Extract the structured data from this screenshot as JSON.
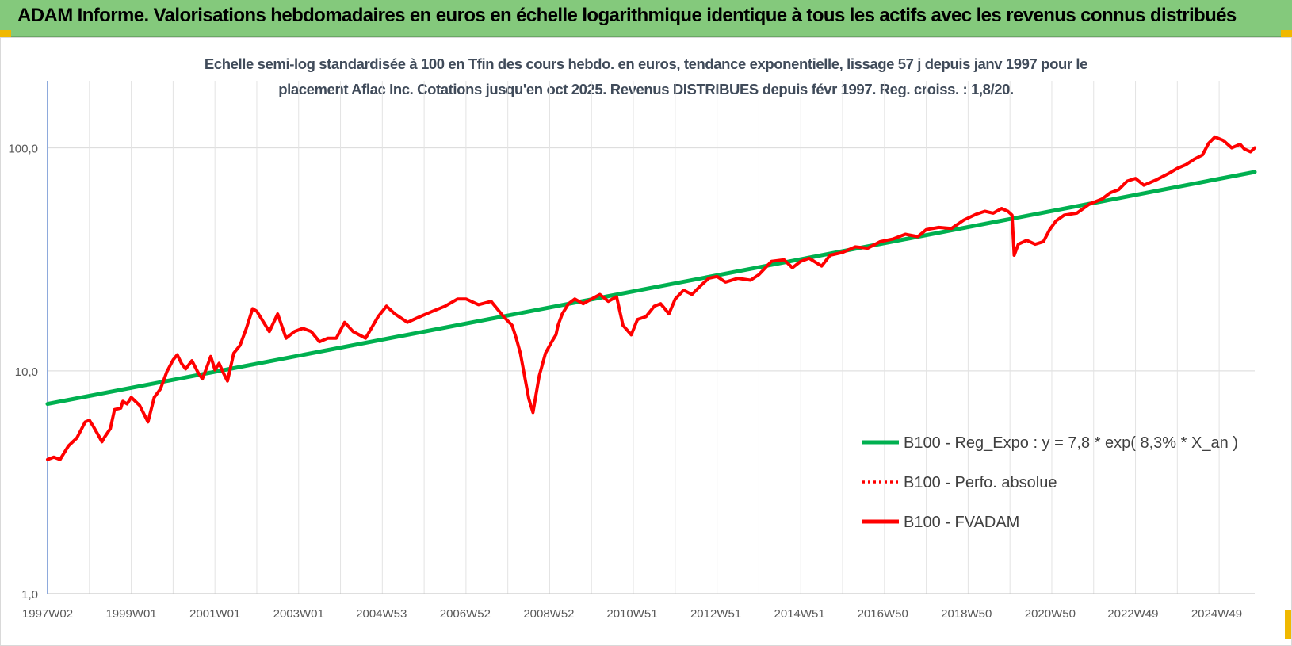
{
  "header": {
    "title": "ADAM Informe. Valorisations hebdomadaires en euros en échelle logarithmique identique à tous les actifs avec les revenus connus distribués"
  },
  "chart_data": {
    "type": "line",
    "title": "Echelle semi-log standardisée à 100 en Tfin des cours hebdo. en euros, tendance exponentielle, lissage 57 j depuis janv 1997 pour le",
    "subtitle": "placement Aflac Inc. Cotations jusqu'en oct 2025.  Revenus DISTRIBUES depuis févr 1997. Reg. croiss. : 1,8/20.",
    "y_scale": "log",
    "ylim": [
      1,
      200
    ],
    "y_ticks": [
      {
        "value": 1,
        "label": "1,0"
      },
      {
        "value": 10,
        "label": "10,0"
      },
      {
        "value": 100,
        "label": "100,0"
      }
    ],
    "xlim": [
      1997.0,
      2025.85
    ],
    "x_ticks": [
      {
        "year": 1997.0,
        "label": "1997W02"
      },
      {
        "year": 1999.0,
        "label": "1999W01"
      },
      {
        "year": 2001.0,
        "label": "2001W01"
      },
      {
        "year": 2003.0,
        "label": "2003W01"
      },
      {
        "year": 2004.98,
        "label": "2004W53"
      },
      {
        "year": 2006.98,
        "label": "2006W52"
      },
      {
        "year": 2008.98,
        "label": "2008W52"
      },
      {
        "year": 2010.97,
        "label": "2010W51"
      },
      {
        "year": 2012.97,
        "label": "2012W51"
      },
      {
        "year": 2014.97,
        "label": "2014W51"
      },
      {
        "year": 2016.96,
        "label": "2016W50"
      },
      {
        "year": 2018.96,
        "label": "2018W50"
      },
      {
        "year": 2020.96,
        "label": "2020W50"
      },
      {
        "year": 2022.94,
        "label": "2022W49"
      },
      {
        "year": 2024.94,
        "label": "2024W49"
      }
    ],
    "grid": true,
    "legend_position": "bottom-right",
    "series": [
      {
        "name": "B100 - Reg_Expo : y = 7,8 * exp( 8,3% *  X_an )",
        "color": "#00b050",
        "style": "solid",
        "x": [
          1997.0,
          2025.85
        ],
        "y": [
          7.1,
          78
        ]
      },
      {
        "name": "B100 - Perfo. absolue",
        "color": "#ff0000",
        "style": "dotted",
        "x": [],
        "y": []
      },
      {
        "name": "B100 - FVADAM",
        "color": "#ff0000",
        "style": "solid",
        "x": [
          1997.0,
          1997.15,
          1997.3,
          1997.5,
          1997.7,
          1997.9,
          1998.0,
          1998.1,
          1998.2,
          1998.3,
          1998.35,
          1998.5,
          1998.6,
          1998.75,
          1998.8,
          1998.9,
          1999.0,
          1999.2,
          1999.4,
          1999.55,
          1999.7,
          1999.85,
          2000.0,
          2000.1,
          2000.2,
          2000.3,
          2000.45,
          2000.6,
          2000.7,
          2000.8,
          2000.9,
          2001.0,
          2001.1,
          2001.2,
          2001.3,
          2001.45,
          2001.6,
          2001.75,
          2001.9,
          2002.0,
          2002.3,
          2002.5,
          2002.7,
          2002.9,
          2003.1,
          2003.3,
          2003.5,
          2003.7,
          2003.9,
          2004.1,
          2004.3,
          2004.6,
          2004.9,
          2005.1,
          2005.3,
          2005.6,
          2005.9,
          2006.2,
          2006.5,
          2006.8,
          2007.0,
          2007.3,
          2007.6,
          2007.9,
          2008.1,
          2008.2,
          2008.3,
          2008.5,
          2008.6,
          2008.75,
          2008.9,
          2009.05,
          2009.15,
          2009.2,
          2009.3,
          2009.45,
          2009.6,
          2009.8,
          2010.0,
          2010.2,
          2010.4,
          2010.6,
          2010.75,
          2010.95,
          2011.1,
          2011.3,
          2011.5,
          2011.65,
          2011.75,
          2011.85,
          2012.0,
          2012.2,
          2012.4,
          2012.6,
          2012.8,
          2013.0,
          2013.2,
          2013.5,
          2013.8,
          2014.0,
          2014.3,
          2014.6,
          2014.8,
          2015.0,
          2015.2,
          2015.5,
          2015.7,
          2016.0,
          2016.3,
          2016.6,
          2016.9,
          2017.2,
          2017.5,
          2017.8,
          2018.0,
          2018.3,
          2018.6,
          2018.9,
          2019.2,
          2019.4,
          2019.6,
          2019.8,
          2019.95,
          2020.05,
          2020.1,
          2020.2,
          2020.4,
          2020.6,
          2020.8,
          2020.95,
          2021.1,
          2021.3,
          2021.6,
          2021.9,
          2022.2,
          2022.4,
          2022.6,
          2022.8,
          2023.0,
          2023.2,
          2023.5,
          2023.8,
          2024.0,
          2024.2,
          2024.4,
          2024.6,
          2024.75,
          2024.9,
          2025.1,
          2025.3,
          2025.5,
          2025.6,
          2025.75,
          2025.85
        ],
        "y": [
          4.0,
          4.1,
          4.0,
          4.6,
          5.0,
          5.9,
          6.0,
          5.6,
          5.2,
          4.8,
          5.0,
          5.5,
          6.7,
          6.8,
          7.3,
          7.1,
          7.6,
          7.0,
          5.9,
          7.6,
          8.3,
          9.9,
          11.2,
          11.8,
          10.8,
          10.2,
          11.1,
          9.8,
          9.2,
          10.3,
          11.6,
          10.1,
          10.8,
          9.8,
          9.0,
          12.0,
          13.0,
          15.5,
          19.0,
          18.5,
          15.0,
          18.0,
          14.0,
          15.0,
          15.5,
          15.0,
          13.5,
          14.0,
          14.0,
          16.5,
          15.0,
          14.0,
          17.5,
          19.5,
          18.0,
          16.5,
          17.5,
          18.5,
          19.5,
          21.0,
          21.0,
          19.8,
          20.5,
          17.5,
          16.0,
          14.0,
          12.0,
          7.5,
          6.5,
          9.5,
          12.0,
          13.5,
          14.5,
          16.0,
          18.0,
          20.0,
          21.0,
          20.0,
          21.0,
          22.0,
          20.5,
          21.5,
          16.0,
          14.5,
          17.0,
          17.5,
          19.5,
          20.0,
          19.0,
          18.0,
          21.0,
          23.0,
          22.0,
          24.0,
          26.0,
          26.5,
          25.0,
          26.0,
          25.5,
          27.0,
          31.0,
          31.5,
          29.0,
          31.0,
          32.0,
          29.5,
          33.0,
          34.0,
          36.0,
          35.5,
          38.0,
          39.0,
          41.0,
          40.0,
          43.0,
          44.0,
          43.5,
          47.5,
          50.5,
          52.0,
          51.0,
          53.5,
          52.0,
          50.0,
          33.0,
          37.0,
          38.5,
          37.0,
          38.0,
          43.0,
          47.0,
          50.0,
          51.0,
          56.0,
          59.0,
          63.0,
          65.0,
          71.0,
          73.0,
          68.0,
          72.0,
          77.0,
          81.0,
          84.0,
          89.0,
          93.0,
          105.0,
          112.0,
          108.0,
          100.0,
          104.0,
          99.0,
          96.0,
          100.0
        ]
      }
    ]
  }
}
